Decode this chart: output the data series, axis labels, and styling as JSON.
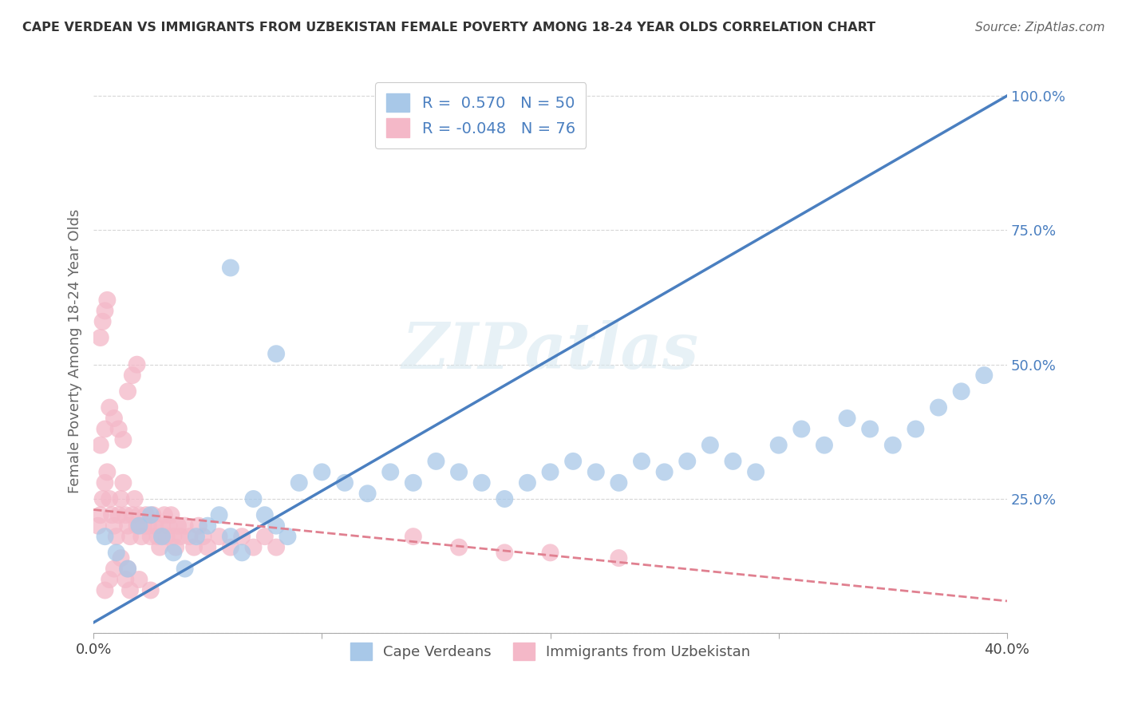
{
  "title": "CAPE VERDEAN VS IMMIGRANTS FROM UZBEKISTAN FEMALE POVERTY AMONG 18-24 YEAR OLDS CORRELATION CHART",
  "source": "Source: ZipAtlas.com",
  "ylabel": "Female Poverty Among 18-24 Year Olds",
  "xlim": [
    0.0,
    0.4
  ],
  "ylim": [
    0.0,
    1.05
  ],
  "xticks": [
    0.0,
    0.1,
    0.2,
    0.3,
    0.4
  ],
  "xtick_labels": [
    "0.0%",
    "",
    "",
    "",
    "40.0%"
  ],
  "yticks": [
    0.0,
    0.25,
    0.5,
    0.75,
    1.0
  ],
  "ytick_labels": [
    "",
    "25.0%",
    "50.0%",
    "75.0%",
    "100.0%"
  ],
  "blue_R": 0.57,
  "blue_N": 50,
  "pink_R": -0.048,
  "pink_N": 76,
  "blue_color": "#a8c8e8",
  "pink_color": "#f4b8c8",
  "blue_line_color": "#4a7fc0",
  "pink_line_color": "#e08090",
  "watermark": "ZIPatlas",
  "blue_trend_x0": 0.0,
  "blue_trend_y0": 0.02,
  "blue_trend_x1": 0.4,
  "blue_trend_y1": 1.0,
  "pink_trend_x0": 0.0,
  "pink_trend_y0": 0.23,
  "pink_trend_x1": 0.4,
  "pink_trend_y1": 0.06,
  "blue_scatter_x": [
    0.005,
    0.01,
    0.015,
    0.02,
    0.025,
    0.03,
    0.035,
    0.04,
    0.045,
    0.05,
    0.055,
    0.06,
    0.065,
    0.07,
    0.075,
    0.08,
    0.085,
    0.09,
    0.1,
    0.11,
    0.12,
    0.13,
    0.14,
    0.15,
    0.16,
    0.17,
    0.18,
    0.19,
    0.2,
    0.21,
    0.22,
    0.23,
    0.24,
    0.25,
    0.26,
    0.27,
    0.28,
    0.29,
    0.3,
    0.31,
    0.32,
    0.33,
    0.34,
    0.35,
    0.36,
    0.37,
    0.38,
    0.39,
    0.06,
    0.08
  ],
  "blue_scatter_y": [
    0.18,
    0.15,
    0.12,
    0.2,
    0.22,
    0.18,
    0.15,
    0.12,
    0.18,
    0.2,
    0.22,
    0.18,
    0.15,
    0.25,
    0.22,
    0.2,
    0.18,
    0.28,
    0.3,
    0.28,
    0.26,
    0.3,
    0.28,
    0.32,
    0.3,
    0.28,
    0.25,
    0.28,
    0.3,
    0.32,
    0.3,
    0.28,
    0.32,
    0.3,
    0.32,
    0.35,
    0.32,
    0.3,
    0.35,
    0.38,
    0.35,
    0.4,
    0.38,
    0.35,
    0.38,
    0.42,
    0.45,
    0.48,
    0.68,
    0.52
  ],
  "pink_scatter_x": [
    0.002,
    0.003,
    0.004,
    0.005,
    0.006,
    0.007,
    0.008,
    0.009,
    0.01,
    0.011,
    0.012,
    0.013,
    0.014,
    0.015,
    0.016,
    0.017,
    0.018,
    0.019,
    0.02,
    0.021,
    0.022,
    0.023,
    0.024,
    0.025,
    0.026,
    0.027,
    0.028,
    0.029,
    0.03,
    0.031,
    0.032,
    0.033,
    0.034,
    0.035,
    0.036,
    0.037,
    0.038,
    0.04,
    0.042,
    0.044,
    0.046,
    0.048,
    0.05,
    0.055,
    0.06,
    0.065,
    0.07,
    0.075,
    0.08,
    0.003,
    0.005,
    0.007,
    0.009,
    0.011,
    0.013,
    0.015,
    0.017,
    0.019,
    0.003,
    0.004,
    0.005,
    0.006,
    0.14,
    0.16,
    0.18,
    0.2,
    0.23,
    0.015,
    0.02,
    0.025,
    0.005,
    0.007,
    0.009,
    0.012,
    0.014,
    0.016
  ],
  "pink_scatter_y": [
    0.2,
    0.22,
    0.25,
    0.28,
    0.3,
    0.25,
    0.22,
    0.2,
    0.18,
    0.22,
    0.25,
    0.28,
    0.22,
    0.2,
    0.18,
    0.22,
    0.25,
    0.2,
    0.22,
    0.18,
    0.2,
    0.22,
    0.2,
    0.18,
    0.22,
    0.2,
    0.18,
    0.16,
    0.2,
    0.22,
    0.18,
    0.2,
    0.22,
    0.18,
    0.16,
    0.2,
    0.18,
    0.2,
    0.18,
    0.16,
    0.2,
    0.18,
    0.16,
    0.18,
    0.16,
    0.18,
    0.16,
    0.18,
    0.16,
    0.35,
    0.38,
    0.42,
    0.4,
    0.38,
    0.36,
    0.45,
    0.48,
    0.5,
    0.55,
    0.58,
    0.6,
    0.62,
    0.18,
    0.16,
    0.15,
    0.15,
    0.14,
    0.12,
    0.1,
    0.08,
    0.08,
    0.1,
    0.12,
    0.14,
    0.1,
    0.08
  ]
}
